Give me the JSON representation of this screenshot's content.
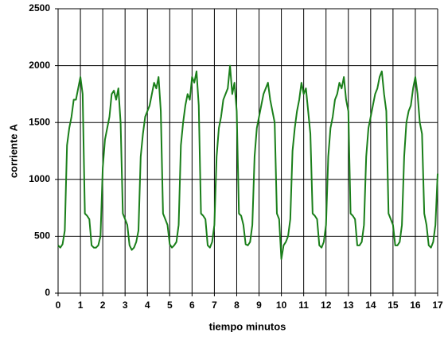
{
  "chart_data": {
    "type": "line",
    "xlabel": "tiempo minutos",
    "ylabel": "corriente A",
    "x": [
      0,
      0.1,
      0.2,
      0.3,
      0.4,
      0.5,
      0.6,
      0.7,
      0.8,
      0.9,
      1,
      1.1,
      1.2,
      1.3,
      1.4,
      1.5,
      1.6,
      1.7,
      1.8,
      1.9,
      2,
      2.1,
      2.2,
      2.3,
      2.4,
      2.5,
      2.6,
      2.7,
      2.8,
      2.9,
      3,
      3.1,
      3.2,
      3.3,
      3.4,
      3.5,
      3.6,
      3.7,
      3.8,
      3.9,
      4,
      4.1,
      4.2,
      4.3,
      4.4,
      4.5,
      4.6,
      4.7,
      4.8,
      4.9,
      5,
      5.1,
      5.2,
      5.3,
      5.4,
      5.5,
      5.6,
      5.7,
      5.8,
      5.9,
      6,
      6.1,
      6.2,
      6.3,
      6.4,
      6.5,
      6.6,
      6.7,
      6.8,
      6.9,
      7,
      7.1,
      7.2,
      7.3,
      7.4,
      7.5,
      7.6,
      7.7,
      7.8,
      7.9,
      8,
      8.1,
      8.2,
      8.3,
      8.4,
      8.5,
      8.6,
      8.7,
      8.8,
      8.9,
      9,
      9.1,
      9.2,
      9.3,
      9.4,
      9.5,
      9.6,
      9.7,
      9.8,
      9.9,
      10,
      10.1,
      10.2,
      10.3,
      10.4,
      10.5,
      10.6,
      10.7,
      10.8,
      10.9,
      11,
      11.1,
      11.2,
      11.3,
      11.4,
      11.5,
      11.6,
      11.7,
      11.8,
      11.9,
      12,
      12.1,
      12.2,
      12.3,
      12.4,
      12.5,
      12.6,
      12.7,
      12.8,
      12.9,
      13,
      13.1,
      13.2,
      13.3,
      13.4,
      13.5,
      13.6,
      13.7,
      13.8,
      13.9,
      14,
      14.1,
      14.2,
      14.3,
      14.4,
      14.5,
      14.6,
      14.7,
      14.8,
      14.9,
      15,
      15.1,
      15.2,
      15.3,
      15.4,
      15.5,
      15.6,
      15.7,
      15.8,
      15.9,
      16,
      16.1,
      16.2,
      16.3,
      16.4,
      16.5,
      16.6,
      16.7,
      16.8,
      16.9,
      17
    ],
    "series": [
      {
        "color": "#1a7f1a",
        "values": [
          420,
          400,
          430,
          550,
          1300,
          1450,
          1550,
          1700,
          1700,
          1800,
          1900,
          1750,
          700,
          680,
          650,
          420,
          400,
          400,
          420,
          500,
          1100,
          1350,
          1450,
          1550,
          1750,
          1780,
          1700,
          1800,
          1500,
          700,
          650,
          600,
          420,
          380,
          400,
          450,
          550,
          1200,
          1400,
          1550,
          1600,
          1650,
          1750,
          1850,
          1800,
          1900,
          1600,
          700,
          650,
          600,
          430,
          400,
          420,
          450,
          600,
          1300,
          1500,
          1650,
          1750,
          1700,
          1900,
          1850,
          1950,
          1650,
          700,
          680,
          650,
          420,
          400,
          450,
          600,
          1200,
          1450,
          1550,
          1700,
          1750,
          1800,
          2000,
          1750,
          1850,
          1600,
          700,
          680,
          600,
          430,
          420,
          450,
          600,
          1200,
          1450,
          1550,
          1650,
          1750,
          1800,
          1850,
          1700,
          1600,
          1500,
          700,
          650,
          300,
          420,
          450,
          500,
          650,
          1250,
          1450,
          1600,
          1700,
          1850,
          1750,
          1800,
          1600,
          1400,
          700,
          680,
          650,
          420,
          400,
          450,
          600,
          1200,
          1450,
          1550,
          1700,
          1750,
          1850,
          1800,
          1900,
          1700,
          1600,
          700,
          680,
          650,
          420,
          420,
          450,
          600,
          1200,
          1450,
          1550,
          1650,
          1750,
          1800,
          1900,
          1950,
          1750,
          1600,
          700,
          650,
          600,
          420,
          420,
          450,
          600,
          1200,
          1500,
          1600,
          1650,
          1800,
          1900,
          1750,
          1500,
          1400,
          700,
          600,
          420,
          400,
          450,
          600,
          1050
        ]
      }
    ],
    "xlim": [
      0,
      17
    ],
    "xticks": [
      0,
      1,
      2,
      3,
      4,
      5,
      6,
      7,
      8,
      9,
      10,
      11,
      12,
      13,
      14,
      15,
      16,
      17
    ],
    "ylim": [
      0,
      2500
    ],
    "yticks": [
      0,
      500,
      1000,
      1500,
      2000,
      2500
    ],
    "grid": true
  }
}
